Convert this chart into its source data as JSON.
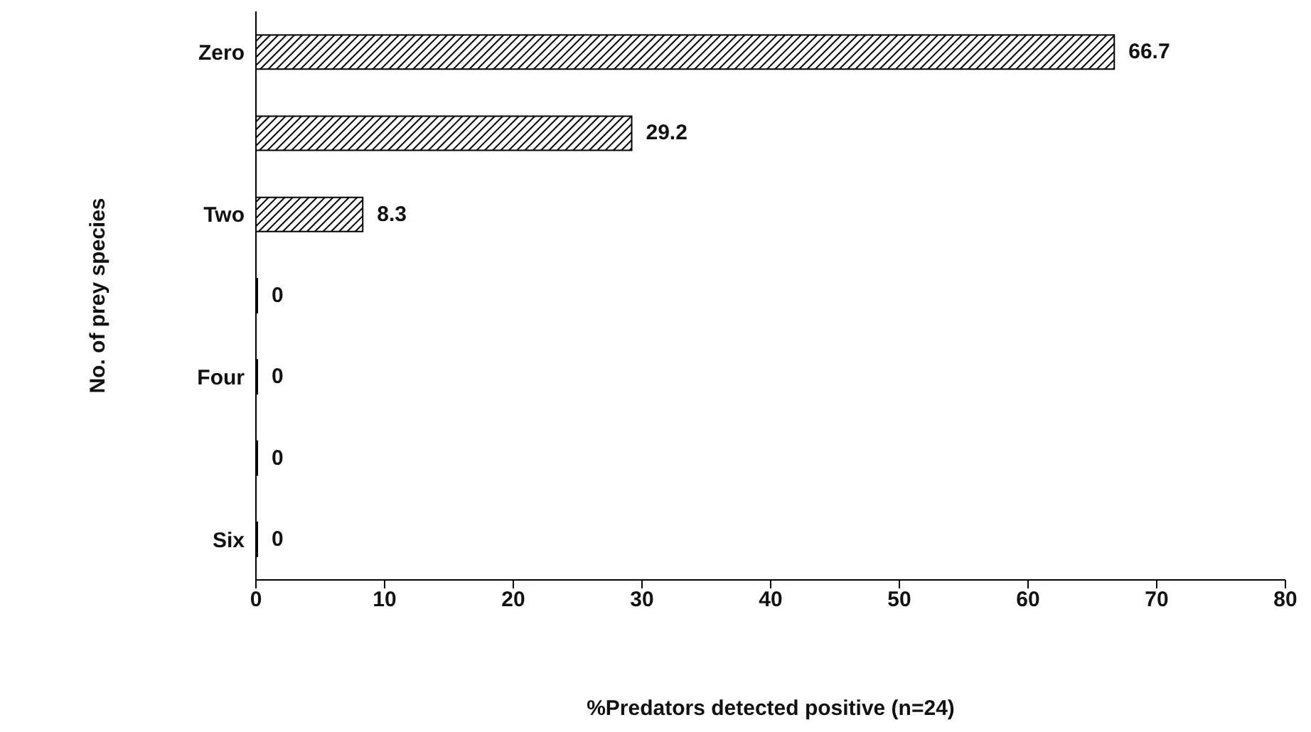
{
  "chart_data": {
    "type": "bar",
    "orientation": "horizontal",
    "xlabel": "%Predators detected positive (n=24)",
    "ylabel": "No. of prey species",
    "categories": [
      "Zero",
      null,
      "Two",
      null,
      "Four",
      null,
      "Six"
    ],
    "values": [
      66.7,
      29.2,
      8.3,
      0,
      0,
      0,
      0
    ],
    "color": "#000000",
    "xlim": [
      0,
      80
    ],
    "xticks": [
      0,
      10,
      20,
      30,
      40,
      50,
      60,
      70,
      80
    ],
    "data_labels": true,
    "grid": false,
    "legend": false
  }
}
